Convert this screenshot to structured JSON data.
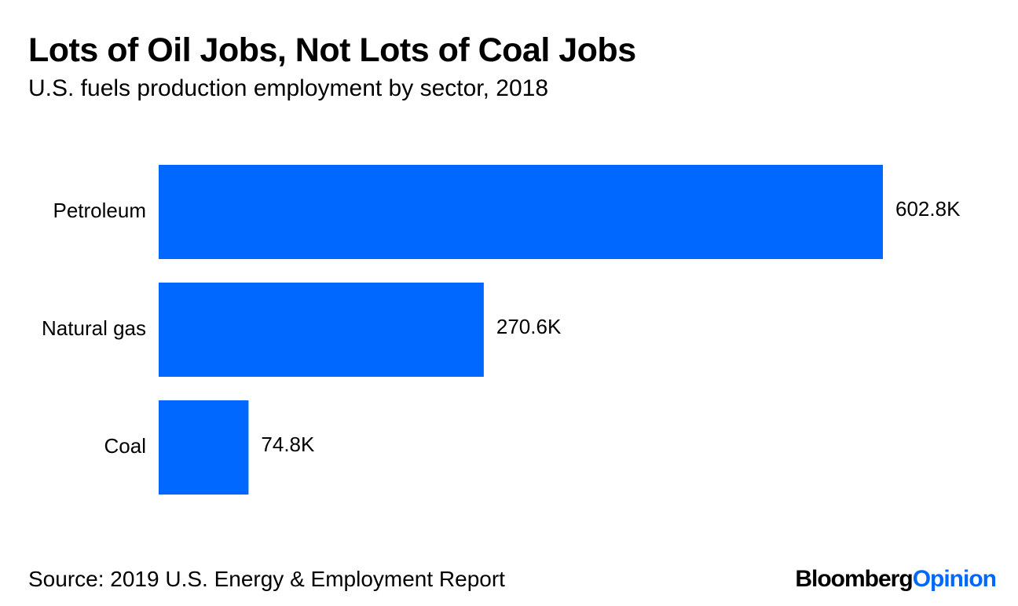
{
  "title": "Lots of Oil Jobs, Not Lots of Coal Jobs",
  "subtitle": "U.S. fuels production employment by sector, 2018",
  "source": "Source: 2019 U.S. Energy & Employment Report",
  "brand": {
    "part1": "Bloomberg",
    "part2": "Opinion"
  },
  "colors": {
    "bar": "#0068ff",
    "brand_accent": "#0068ff"
  },
  "chart_data": {
    "type": "bar",
    "orientation": "horizontal",
    "categories": [
      "Petroleum",
      "Natural gas",
      "Coal"
    ],
    "values": [
      602.8,
      270.6,
      74.8
    ],
    "value_labels": [
      "602.8K",
      "270.6K",
      "74.8K"
    ],
    "title": "Lots of Oil Jobs, Not Lots of Coal Jobs",
    "subtitle": "U.S. fuels production employment by sector, 2018",
    "xlabel": "",
    "ylabel": "",
    "grid": false
  }
}
